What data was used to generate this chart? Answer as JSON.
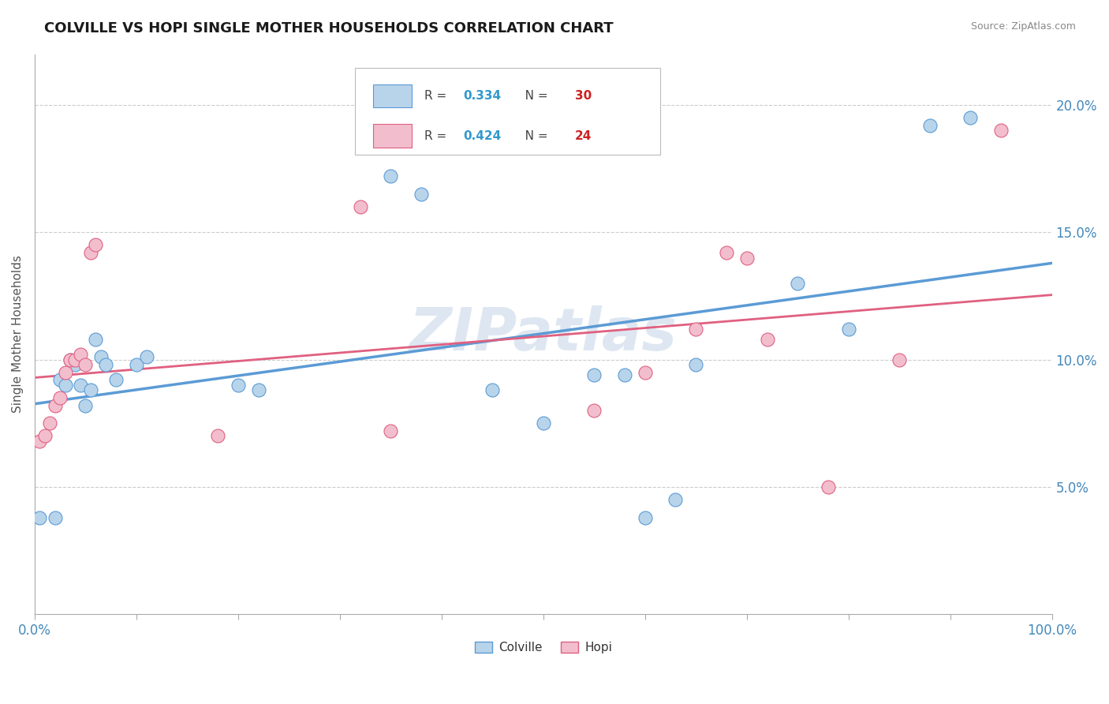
{
  "title": "COLVILLE VS HOPI SINGLE MOTHER HOUSEHOLDS CORRELATION CHART",
  "source": "Source: ZipAtlas.com",
  "ylabel": "Single Mother Households",
  "colville_R": 0.334,
  "colville_N": 30,
  "hopi_R": 0.424,
  "hopi_N": 24,
  "colville_color": "#b8d4ea",
  "hopi_color": "#f2bece",
  "colville_line_color": "#5b9bd5",
  "hopi_line_color": "#e06080",
  "legend_R_color": "#3399cc",
  "legend_N_color": "#cc2222",
  "bg_color": "#ffffff",
  "grid_color": "#cccccc",
  "title_color": "#1a1a1a",
  "axis_label_color": "#4488bb",
  "colville_scatter": [
    [
      0.5,
      3.8
    ],
    [
      2.0,
      3.8
    ],
    [
      2.5,
      9.2
    ],
    [
      3.0,
      9.0
    ],
    [
      3.5,
      10.0
    ],
    [
      4.0,
      9.8
    ],
    [
      4.5,
      9.0
    ],
    [
      5.0,
      8.2
    ],
    [
      5.5,
      8.8
    ],
    [
      6.0,
      10.8
    ],
    [
      6.5,
      10.1
    ],
    [
      7.0,
      9.8
    ],
    [
      8.0,
      9.2
    ],
    [
      10.0,
      9.8
    ],
    [
      11.0,
      10.1
    ],
    [
      20.0,
      9.0
    ],
    [
      22.0,
      8.8
    ],
    [
      35.0,
      17.2
    ],
    [
      38.0,
      16.5
    ],
    [
      45.0,
      8.8
    ],
    [
      50.0,
      7.5
    ],
    [
      55.0,
      9.4
    ],
    [
      58.0,
      9.4
    ],
    [
      60.0,
      3.8
    ],
    [
      63.0,
      4.5
    ],
    [
      65.0,
      9.8
    ],
    [
      75.0,
      13.0
    ],
    [
      80.0,
      11.2
    ],
    [
      88.0,
      19.2
    ],
    [
      92.0,
      19.5
    ]
  ],
  "hopi_scatter": [
    [
      0.5,
      6.8
    ],
    [
      1.0,
      7.0
    ],
    [
      1.5,
      7.5
    ],
    [
      2.0,
      8.2
    ],
    [
      2.5,
      8.5
    ],
    [
      3.0,
      9.5
    ],
    [
      3.5,
      10.0
    ],
    [
      4.0,
      10.0
    ],
    [
      4.5,
      10.2
    ],
    [
      5.0,
      9.8
    ],
    [
      5.5,
      14.2
    ],
    [
      6.0,
      14.5
    ],
    [
      18.0,
      7.0
    ],
    [
      32.0,
      16.0
    ],
    [
      35.0,
      7.2
    ],
    [
      55.0,
      8.0
    ],
    [
      60.0,
      9.5
    ],
    [
      65.0,
      11.2
    ],
    [
      68.0,
      14.2
    ],
    [
      70.0,
      14.0
    ],
    [
      72.0,
      10.8
    ],
    [
      78.0,
      5.0
    ],
    [
      85.0,
      10.0
    ],
    [
      95.0,
      19.0
    ]
  ],
  "xlim": [
    0,
    100
  ],
  "ylim": [
    0,
    22
  ],
  "yticks": [
    5.0,
    10.0,
    15.0,
    20.0
  ],
  "ytick_labels": [
    "5.0%",
    "10.0%",
    "15.0%",
    "20.0%"
  ],
  "xticks": [
    0,
    10,
    20,
    30,
    40,
    50,
    60,
    70,
    80,
    90,
    100
  ],
  "watermark": "ZIPatlas",
  "watermark_color": "#c8d8e8",
  "figsize": [
    14.06,
    8.92
  ],
  "dpi": 100
}
